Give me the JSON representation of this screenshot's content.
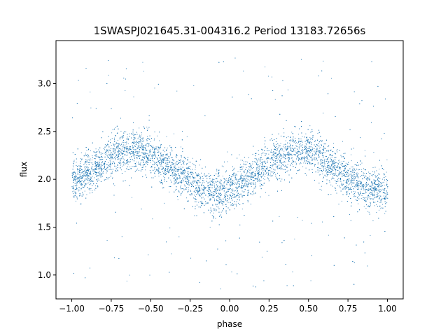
{
  "chart_data": {
    "type": "scatter",
    "title": "1SWASPJ021645.31-004316.2 Period 13183.72656s",
    "xlabel": "phase",
    "ylabel": "flux",
    "xlim": [
      -1.1,
      1.1
    ],
    "ylim": [
      0.75,
      3.45
    ],
    "xticks": [
      -1.0,
      -0.75,
      -0.5,
      -0.25,
      0.0,
      0.25,
      0.5,
      0.75,
      1.0
    ],
    "xtick_labels": [
      "−1.00",
      "−0.75",
      "−0.50",
      "−0.25",
      "0.00",
      "0.25",
      "0.50",
      "0.75",
      "1.00"
    ],
    "yticks": [
      1.0,
      1.5,
      2.0,
      2.5,
      3.0
    ],
    "ytick_labels": [
      "1.0",
      "1.5",
      "2.0",
      "2.5",
      "3.0"
    ],
    "grid": false,
    "point_color": "#1f77b4",
    "series": [
      {
        "phase": [
          -1.0,
          -0.9,
          -0.8,
          -0.7,
          -0.6,
          -0.5,
          -0.4,
          -0.3,
          -0.2,
          -0.1,
          0.0,
          0.1,
          0.2,
          0.3,
          0.4,
          0.5,
          0.6,
          0.7,
          0.8,
          0.9,
          1.0
        ],
        "mean_flux": [
          1.97,
          2.07,
          2.19,
          2.29,
          2.32,
          2.25,
          2.15,
          2.05,
          1.92,
          1.86,
          1.88,
          1.98,
          2.12,
          2.25,
          2.31,
          2.29,
          2.18,
          2.07,
          1.96,
          1.9,
          1.9
        ],
        "spread": 0.11,
        "outlier_range": [
          0.85,
          3.3
        ]
      }
    ]
  }
}
